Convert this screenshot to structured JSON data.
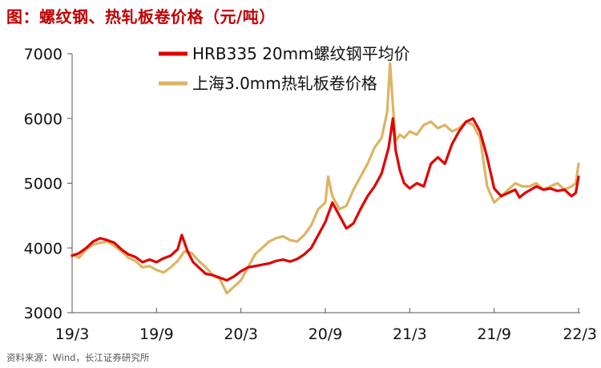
{
  "header": {
    "title": "图：螺纹钢、热轧板卷价格（元/吨）"
  },
  "footer": {
    "source": "资料来源：Wind，长江证券研究所"
  },
  "chart_data": {
    "type": "line",
    "title": "图：螺纹钢、热轧板卷价格（元/吨）",
    "xlabel": "",
    "ylabel": "",
    "ylim": [
      3000,
      7000
    ],
    "yticks": [
      3000,
      4000,
      5000,
      6000,
      7000
    ],
    "x_tick_labels": [
      "19/3",
      "19/9",
      "20/3",
      "20/9",
      "21/3",
      "21/9",
      "22/3"
    ],
    "legend_position": "top",
    "x_unit": "months since 2019-03 (0 = 19/3, 36 = 22/3)",
    "series": [
      {
        "name": "HRB335 20mm螺纹钢平均价",
        "color": "#e00000",
        "x": [
          0,
          0.5,
          1,
          1.5,
          2,
          2.5,
          3,
          3.5,
          4,
          4.5,
          5,
          5.5,
          6,
          6.5,
          7,
          7.5,
          7.8,
          8.2,
          8.6,
          9,
          9.5,
          10,
          10.5,
          11,
          11.5,
          12,
          12.5,
          13,
          13.5,
          14,
          14.5,
          15,
          15.5,
          16,
          16.5,
          17,
          17.5,
          18,
          18.5,
          19,
          19.5,
          20,
          20.5,
          21,
          21.5,
          22,
          22.5,
          22.8,
          23,
          23.3,
          23.6,
          24,
          24.5,
          25,
          25.5,
          26,
          26.5,
          27,
          27.5,
          28,
          28.5,
          29,
          29.5,
          30,
          30.5,
          31,
          31.5,
          31.8,
          32.2,
          32.6,
          33,
          33.5,
          34,
          34.5,
          35,
          35.5,
          35.8,
          36
        ],
        "values": [
          3880,
          3920,
          4000,
          4100,
          4150,
          4120,
          4080,
          3980,
          3900,
          3860,
          3780,
          3820,
          3780,
          3840,
          3880,
          3980,
          4200,
          3950,
          3780,
          3700,
          3600,
          3580,
          3540,
          3500,
          3560,
          3640,
          3700,
          3720,
          3740,
          3760,
          3800,
          3820,
          3790,
          3830,
          3900,
          4000,
          4200,
          4400,
          4700,
          4500,
          4300,
          4380,
          4600,
          4800,
          4950,
          5150,
          5550,
          6000,
          5500,
          5200,
          5000,
          4920,
          5000,
          4950,
          5300,
          5400,
          5300,
          5600,
          5800,
          5950,
          6000,
          5800,
          5400,
          4920,
          4800,
          4850,
          4900,
          4780,
          4850,
          4900,
          4950,
          4900,
          4920,
          4880,
          4900,
          4800,
          4850,
          5100
        ]
      },
      {
        "name": "上海3.0mm热轧板卷价格",
        "color": "#ddb463",
        "x": [
          0,
          0.5,
          1,
          1.5,
          2,
          2.5,
          3,
          3.5,
          4,
          4.5,
          5,
          5.5,
          6,
          6.5,
          7,
          7.5,
          8,
          8.5,
          9,
          9.5,
          10,
          10.5,
          11,
          11.5,
          12,
          12.5,
          13,
          13.5,
          14,
          14.5,
          15,
          15.5,
          16,
          16.5,
          17,
          17.5,
          18,
          18.2,
          18.5,
          19,
          19.5,
          20,
          20.5,
          21,
          21.5,
          22,
          22.4,
          22.6,
          22.8,
          23,
          23.3,
          23.6,
          24,
          24.5,
          25,
          25.5,
          26,
          26.5,
          27,
          27.5,
          28,
          28.5,
          29,
          29.5,
          30,
          30.5,
          31,
          31.5,
          32,
          32.5,
          33,
          33.5,
          34,
          34.5,
          35,
          35.5,
          35.8,
          36
        ],
        "values": [
          3900,
          3850,
          3980,
          4050,
          4080,
          4100,
          4030,
          3950,
          3850,
          3800,
          3700,
          3720,
          3660,
          3620,
          3700,
          3800,
          3950,
          3920,
          3800,
          3700,
          3580,
          3520,
          3300,
          3400,
          3500,
          3700,
          3900,
          4000,
          4100,
          4150,
          4180,
          4120,
          4100,
          4200,
          4350,
          4600,
          4700,
          5100,
          4800,
          4600,
          4650,
          4900,
          5100,
          5300,
          5550,
          5700,
          6100,
          6850,
          6200,
          5650,
          5750,
          5700,
          5800,
          5750,
          5900,
          5950,
          5850,
          5900,
          5800,
          5850,
          5950,
          5900,
          5700,
          4950,
          4700,
          4800,
          4900,
          5000,
          4950,
          4950,
          5000,
          4900,
          4950,
          5000,
          4900,
          4950,
          5000,
          5300
        ]
      }
    ]
  }
}
